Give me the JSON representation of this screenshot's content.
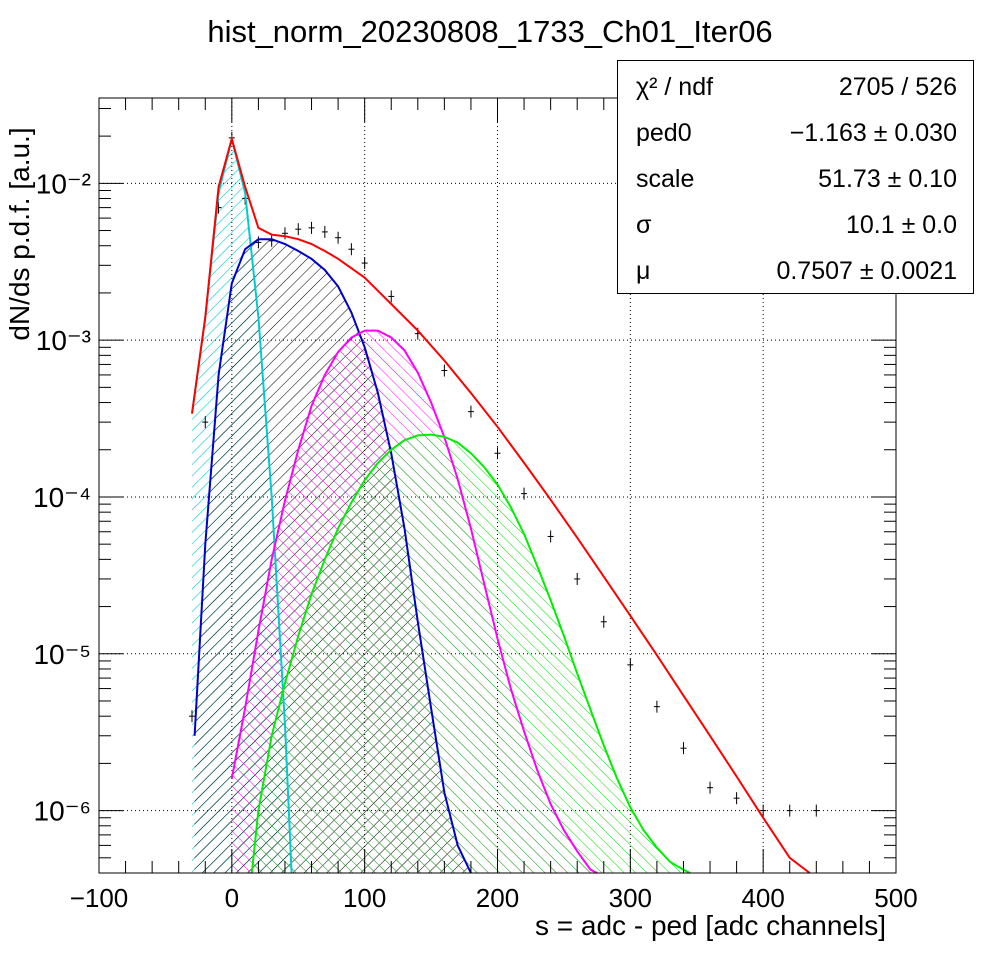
{
  "chart_data": {
    "type": "line",
    "title": "hist_norm_20230808_1733_Ch01_Iter06",
    "xlabel": "s = adc - ped [adc channels]",
    "ylabel": "dN/ds p.d.f. [a.u.]",
    "xlim": [
      -100,
      500
    ],
    "ylim": [
      4e-07,
      0.035
    ],
    "yscale": "log",
    "grid": true,
    "x_ticks": [
      "−100",
      "0",
      "100",
      "200",
      "300",
      "400",
      "500"
    ],
    "y_ticks": [
      "10⁻⁶",
      "10⁻⁵",
      "10⁻⁴",
      "10⁻³",
      "10⁻²"
    ],
    "stats": [
      {
        "name": "χ² / ndf",
        "value": "2705 / 526"
      },
      {
        "name": "ped0",
        "value": "−1.163 ± 0.030"
      },
      {
        "name": "scale",
        "value": "51.73 ± 0.10"
      },
      {
        "name": "σ",
        "value": "10.1 ± 0.0"
      },
      {
        "name": "μ",
        "value": "0.7507 ± 0.0021"
      }
    ],
    "series": [
      {
        "color": "#000000",
        "style": "histogram",
        "x": [
          -30,
          -20,
          -10,
          0,
          10,
          20,
          30,
          40,
          50,
          60,
          70,
          80,
          90,
          100,
          120,
          140,
          160,
          180,
          200,
          220,
          240,
          260,
          280,
          300,
          320,
          340,
          360,
          380,
          400,
          420,
          440
        ],
        "y": [
          4e-06,
          0.0003,
          0.007,
          0.0195,
          0.008,
          0.0042,
          0.0043,
          0.0048,
          0.0051,
          0.0052,
          0.0049,
          0.0045,
          0.0038,
          0.0031,
          0.0019,
          0.0011,
          0.00064,
          0.00035,
          0.00019,
          0.000105,
          5.6e-05,
          3e-05,
          1.6e-05,
          8.5e-06,
          4.6e-06,
          2.5e-06,
          1.4e-06,
          1.2e-06,
          1e-06,
          1e-06,
          1e-06
        ]
      },
      {
        "color": "#ff0000",
        "style": "line",
        "x": [
          -30,
          -20,
          -10,
          0,
          10,
          20,
          30,
          40,
          50,
          60,
          70,
          80,
          100,
          120,
          140,
          160,
          180,
          200,
          220,
          240,
          260,
          280,
          300,
          320,
          340,
          360,
          380,
          400,
          420,
          435
        ],
        "y": [
          0.00034,
          0.0014,
          0.0095,
          0.0192,
          0.0095,
          0.0052,
          0.0047,
          0.0046,
          0.0044,
          0.0041,
          0.0037,
          0.0033,
          0.0025,
          0.0017,
          0.00115,
          0.00074,
          0.00046,
          0.00028,
          0.000165,
          9.6e-05,
          5.5e-05,
          3.1e-05,
          1.75e-05,
          9.8e-06,
          5.4e-06,
          3e-06,
          1.65e-06,
          9e-07,
          5e-07,
          3e-07
        ]
      },
      {
        "color": "#00cccc",
        "style": "hatched",
        "x": [
          -30,
          -20,
          -10,
          0,
          10,
          20,
          30,
          40,
          45
        ],
        "y": [
          0.00034,
          0.0014,
          0.0087,
          0.0192,
          0.0087,
          0.0014,
          0.0001,
          3.5e-06,
          4e-07
        ]
      },
      {
        "color": "#0000cc",
        "style": "hatched",
        "x": [
          -28,
          -20,
          -10,
          0,
          10,
          20,
          30,
          40,
          50,
          60,
          70,
          80,
          90,
          100,
          110,
          120,
          130,
          140,
          150,
          160,
          170,
          180
        ],
        "y": [
          3e-06,
          5e-05,
          0.0006,
          0.0023,
          0.0038,
          0.0044,
          0.0044,
          0.0041,
          0.0037,
          0.0033,
          0.0028,
          0.0022,
          0.0015,
          0.0009,
          0.00046,
          0.00019,
          6.3e-05,
          1.6e-05,
          4.5e-06,
          1.3e-06,
          6e-07,
          4e-07
        ]
      },
      {
        "color": "#ff00ff",
        "style": "hatched",
        "x": [
          0,
          10,
          20,
          30,
          40,
          50,
          60,
          70,
          80,
          90,
          100,
          110,
          120,
          130,
          140,
          150,
          160,
          170,
          180,
          190,
          200,
          210,
          220,
          230,
          240,
          250,
          260,
          270,
          275
        ],
        "y": [
          1.6e-06,
          4.5e-06,
          1.4e-05,
          4e-05,
          9.5e-05,
          0.0002,
          0.00038,
          0.0006,
          0.00084,
          0.00104,
          0.00115,
          0.00115,
          0.00104,
          0.00086,
          0.00062,
          0.0004,
          0.00024,
          0.00013,
          6.3e-05,
          2.8e-05,
          1.25e-05,
          6e-06,
          3.2e-06,
          1.8e-06,
          1.1e-06,
          7.5e-07,
          5.5e-07,
          4.2e-07,
          4e-07
        ]
      },
      {
        "color": "#00ee00",
        "style": "hatched",
        "x": [
          15,
          20,
          30,
          40,
          50,
          60,
          70,
          80,
          90,
          100,
          110,
          120,
          130,
          140,
          150,
          160,
          170,
          180,
          190,
          200,
          210,
          220,
          230,
          240,
          250,
          260,
          270,
          280,
          290,
          300,
          310,
          320,
          330,
          340,
          345
        ],
        "y": [
          4e-07,
          1e-06,
          3e-06,
          6.5e-06,
          1.3e-05,
          2.4e-05,
          4e-05,
          6.3e-05,
          9.2e-05,
          0.000128,
          0.000165,
          0.0002,
          0.00023,
          0.000247,
          0.00025,
          0.000242,
          0.000222,
          0.00019,
          0.000155,
          0.00012,
          8.6e-05,
          5.8e-05,
          3.6e-05,
          2.2e-05,
          1.3e-05,
          7.5e-06,
          4.4e-06,
          2.6e-06,
          1.6e-06,
          1.05e-06,
          7.5e-07,
          5.8e-07,
          4.7e-07,
          4.2e-07,
          4e-07
        ]
      }
    ]
  }
}
